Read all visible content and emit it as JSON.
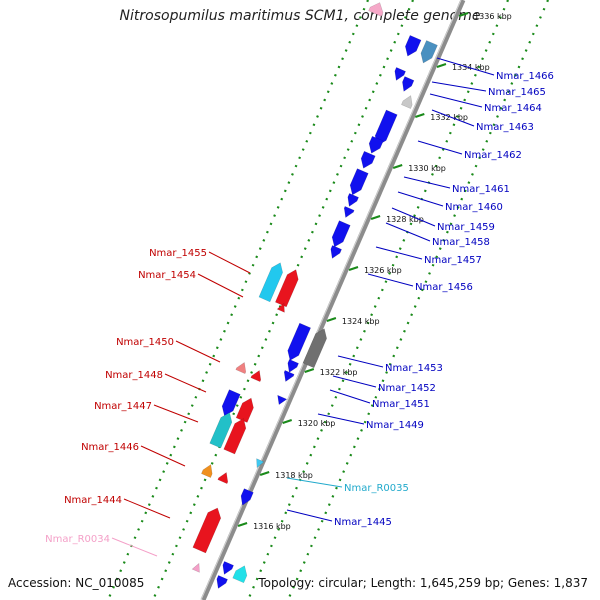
{
  "title": "Nitrosopumilus maritimus SCM1, complete genome",
  "footer": {
    "accession": "Accession: NC_010085",
    "topology": "Topology: circular; Length: 1,645,259 bp; Genes: 1,837"
  },
  "scale_labels": [
    "1336 kbp",
    "1334 kbp",
    "1332 kbp",
    "1330 kbp",
    "1328 kbp",
    "1326 kbp",
    "1324 kbp",
    "1322 kbp",
    "1320 kbp",
    "1318 kbp",
    "1316 kbp"
  ],
  "colors": {
    "backbone": "#8c8c8c",
    "dotted": "#1a8a1a",
    "plus_gene": "#e8141e",
    "minus_gene": "#1111ee",
    "rna_cyan": "#22c8d8",
    "pink_rna": "#f4a0c8",
    "label_plus": "#c00000",
    "label_minus": "#0000c0"
  },
  "genes_minus": [
    {
      "label": "Nmar_1466"
    },
    {
      "label": "Nmar_1465"
    },
    {
      "label": "Nmar_1464"
    },
    {
      "label": "Nmar_1463"
    },
    {
      "label": "Nmar_1462"
    },
    {
      "label": "Nmar_1461"
    },
    {
      "label": "Nmar_1460"
    },
    {
      "label": "Nmar_1459"
    },
    {
      "label": "Nmar_1458"
    },
    {
      "label": "Nmar_1457"
    },
    {
      "label": "Nmar_1456"
    },
    {
      "label": "Nmar_1453"
    },
    {
      "label": "Nmar_1452"
    },
    {
      "label": "Nmar_1451"
    },
    {
      "label": "Nmar_1449"
    },
    {
      "label": "Nmar_R0035"
    },
    {
      "label": "Nmar_1445"
    }
  ],
  "genes_plus": [
    {
      "label": "Nmar_1455"
    },
    {
      "label": "Nmar_1454"
    },
    {
      "label": "Nmar_1450"
    },
    {
      "label": "Nmar_1448"
    },
    {
      "label": "Nmar_1447"
    },
    {
      "label": "Nmar_1446"
    },
    {
      "label": "Nmar_1444"
    },
    {
      "label": "Nmar_R0034"
    }
  ]
}
